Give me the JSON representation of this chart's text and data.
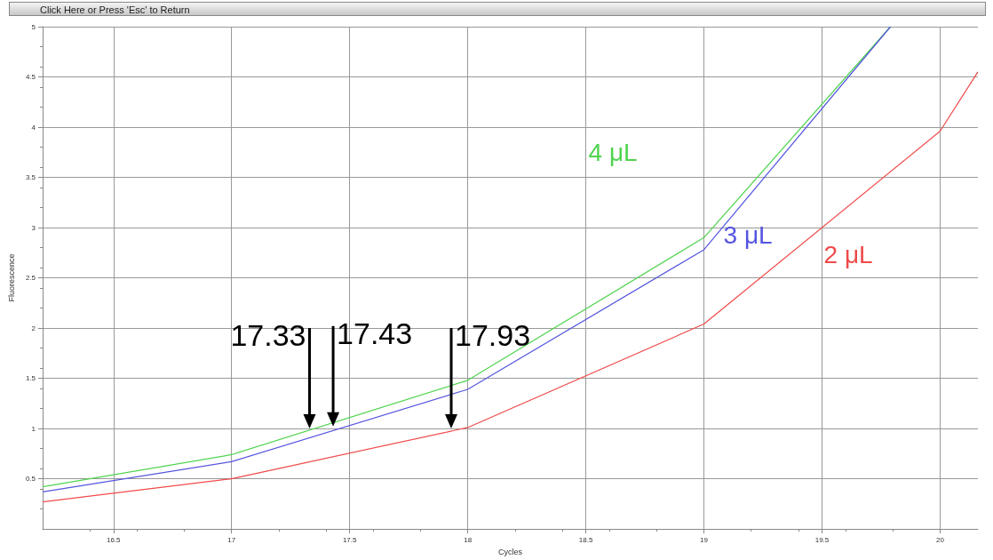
{
  "chart_data": {
    "type": "line",
    "xlabel": "Cycles",
    "ylabel": "Fluorescence",
    "annotations": [
      "Click Here or Press 'Esc' to Return",
      {
        "text": "17.33",
        "x": 17.33,
        "y": 1.0
      },
      {
        "text": "17.43",
        "x": 17.43,
        "y": 1.02
      },
      {
        "text": "17.93",
        "x": 17.93,
        "y": 1.0
      }
    ],
    "series": [
      {
        "name": "4 μL",
        "color": "#4fd44f",
        "x": [
          16.2,
          17,
          18,
          19,
          19.79
        ],
        "values": [
          0.42,
          0.74,
          1.48,
          2.9,
          5.0
        ]
      },
      {
        "name": "3 μL",
        "color": "#5555e0",
        "x": [
          16.2,
          17,
          18,
          19,
          19.79
        ],
        "values": [
          0.37,
          0.67,
          1.39,
          2.78,
          5.0
        ]
      },
      {
        "name": "2 μL",
        "color": "#f04a4a",
        "x": [
          16.2,
          17,
          18,
          19,
          20,
          20.16
        ],
        "values": [
          0.27,
          0.5,
          1.01,
          2.04,
          3.96,
          4.55
        ]
      }
    ],
    "xlim": [
      16.2,
      20.16
    ],
    "xticks": [
      16.5,
      17.0,
      17.5,
      18.0,
      18.5,
      19.0,
      19.5,
      20.0
    ],
    "ylim": [
      0,
      5
    ],
    "yticks": [
      0.5,
      1.0,
      1.5,
      2.0,
      2.5,
      3.0,
      3.5,
      4.0,
      4.5,
      5.0
    ],
    "grid": true,
    "legend": false,
    "marker": "none",
    "line_style": "solid"
  }
}
